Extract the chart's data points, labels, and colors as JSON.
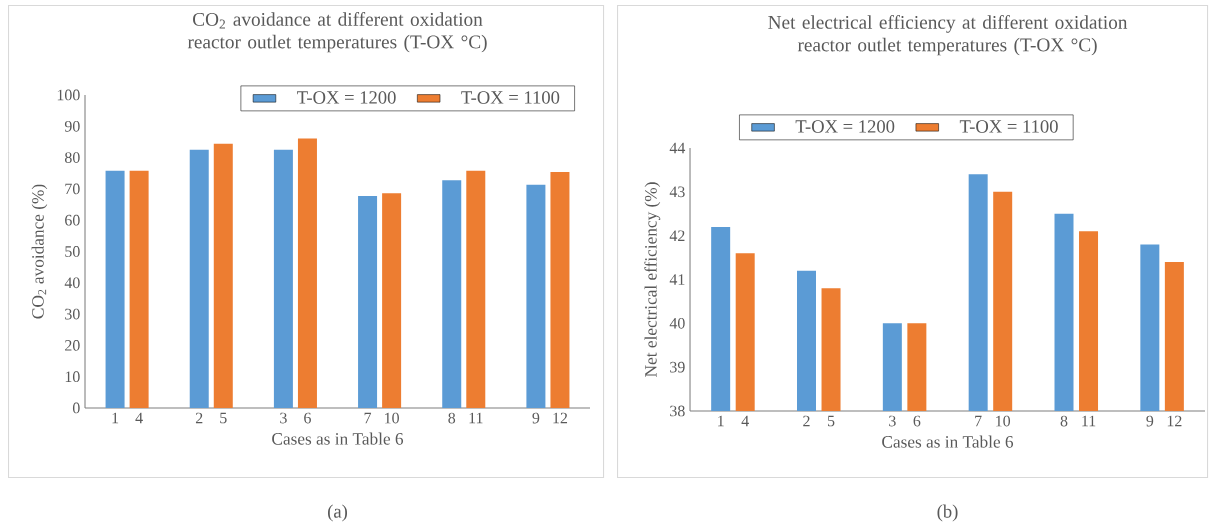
{
  "chart_data": [
    {
      "type": "bar",
      "title": "CO$_{2}$ avoidance at different oxidation reactor outlet temperatures (T-OX °C)",
      "xlabel": "Cases as in Table 6",
      "ylabel": "CO$_{2}$ avoidance (%)",
      "categories": [
        "1",
        "4",
        "2",
        "5",
        "3",
        "6",
        "7",
        "10",
        "8",
        "11",
        "9",
        "12"
      ],
      "series": [
        {
          "name": "T-OX = 1200",
          "color": "#5b9bd5",
          "values": [
            75.8,
            null,
            82.5,
            null,
            82.5,
            null,
            67.7,
            null,
            72.8,
            null,
            71.3,
            null
          ]
        },
        {
          "name": "T-OX = 1100",
          "color": "#ed7d31",
          "values": [
            null,
            75.8,
            null,
            84.4,
            null,
            86.1,
            null,
            68.6,
            null,
            75.8,
            null,
            75.4
          ]
        }
      ],
      "ylim": [
        0,
        100
      ],
      "yticks": [
        0,
        10,
        20,
        30,
        40,
        50,
        60,
        70,
        80,
        90,
        100
      ],
      "grid": false,
      "legend": "top right",
      "annotations": [
        "(a)"
      ]
    },
    {
      "type": "bar",
      "title": "Net electrical efficiency at different oxidation reactor outlet temperatures (T-OX °C)",
      "xlabel": "Cases as in Table 6",
      "ylabel": "Net electrical efficiency (%)",
      "categories": [
        "1",
        "4",
        "2",
        "5",
        "3",
        "6",
        "7",
        "10",
        "8",
        "11",
        "9",
        "12"
      ],
      "series": [
        {
          "name": "T-OX = 1200",
          "color": "#5b9bd5",
          "values": [
            42.2,
            null,
            41.2,
            null,
            40.0,
            null,
            43.4,
            null,
            42.5,
            null,
            41.8,
            null
          ]
        },
        {
          "name": "T-OX = 1100",
          "color": "#ed7d31",
          "values": [
            null,
            41.6,
            null,
            40.8,
            null,
            40.0,
            null,
            43.0,
            null,
            42.1,
            null,
            41.4
          ]
        }
      ],
      "ylim": [
        38,
        44
      ],
      "yticks": [
        38,
        39,
        40,
        41,
        42,
        43,
        44
      ],
      "grid": false,
      "legend": "top",
      "annotations": [
        "(b)"
      ]
    }
  ]
}
